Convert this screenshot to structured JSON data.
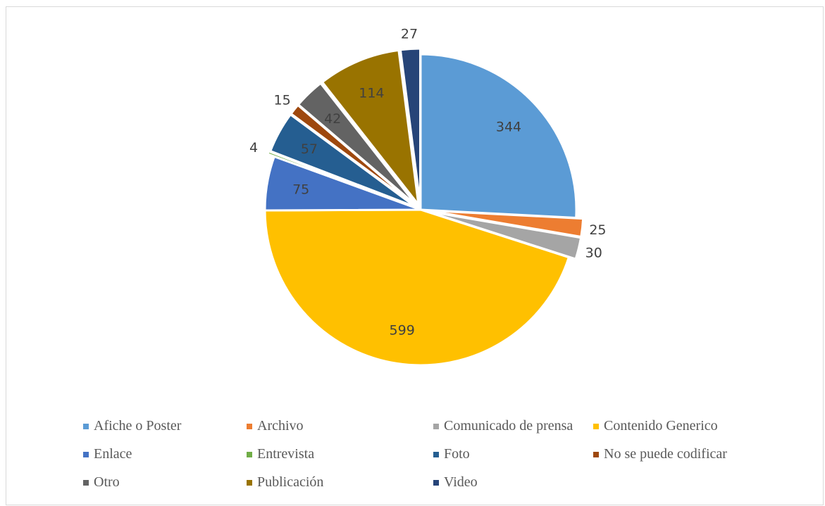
{
  "chart_data": {
    "type": "pie",
    "title": "",
    "slices": [
      {
        "label": "Afiche o Poster",
        "value": 344,
        "color": "#5b9bd5"
      },
      {
        "label": "Archivo",
        "value": 25,
        "color": "#ed7d31"
      },
      {
        "label": "Comunicado de prensa",
        "value": 30,
        "color": "#a5a5a5"
      },
      {
        "label": "Contenido Generico",
        "value": 599,
        "color": "#ffc000"
      },
      {
        "label": "Enlace",
        "value": 75,
        "color": "#4472c4"
      },
      {
        "label": "Entrevista",
        "value": 4,
        "color": "#70ad47"
      },
      {
        "label": "Foto",
        "value": 57,
        "color": "#255e91"
      },
      {
        "label": "No se puede codificar",
        "value": 15,
        "color": "#9e480e"
      },
      {
        "label": "Otro",
        "value": 42,
        "color": "#636363"
      },
      {
        "label": "Publicación",
        "value": 114,
        "color": "#997300"
      },
      {
        "label": "Video",
        "value": 27,
        "color": "#264478"
      }
    ],
    "data_labels": [
      "344",
      "25",
      "30",
      "599",
      "75",
      "4",
      "57",
      "15",
      "42",
      "114",
      "27"
    ],
    "legend_position": "bottom",
    "start_angle": "12 o'clock, clockwise"
  }
}
